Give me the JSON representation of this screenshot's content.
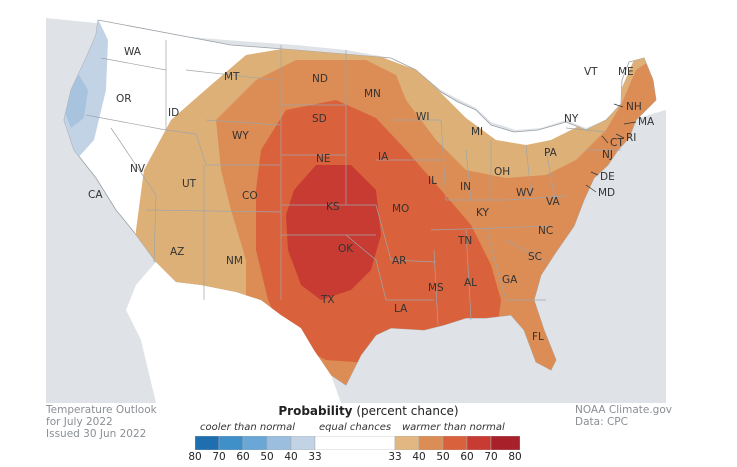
{
  "map": {
    "states": [
      {
        "id": "WA",
        "label": "WA"
      },
      {
        "id": "OR",
        "label": "OR"
      },
      {
        "id": "CA",
        "label": "CA"
      },
      {
        "id": "ID",
        "label": "ID"
      },
      {
        "id": "NV",
        "label": "NV"
      },
      {
        "id": "MT",
        "label": "MT"
      },
      {
        "id": "WY",
        "label": "WY"
      },
      {
        "id": "UT",
        "label": "UT"
      },
      {
        "id": "AZ",
        "label": "AZ"
      },
      {
        "id": "CO",
        "label": "CO"
      },
      {
        "id": "NM",
        "label": "NM"
      },
      {
        "id": "ND",
        "label": "ND"
      },
      {
        "id": "SD",
        "label": "SD"
      },
      {
        "id": "NE",
        "label": "NE"
      },
      {
        "id": "KS",
        "label": "KS"
      },
      {
        "id": "OK",
        "label": "OK"
      },
      {
        "id": "TX",
        "label": "TX"
      },
      {
        "id": "MN",
        "label": "MN"
      },
      {
        "id": "IA",
        "label": "IA"
      },
      {
        "id": "MO",
        "label": "MO"
      },
      {
        "id": "AR",
        "label": "AR"
      },
      {
        "id": "LA",
        "label": "LA"
      },
      {
        "id": "WI",
        "label": "WI"
      },
      {
        "id": "IL",
        "label": "IL"
      },
      {
        "id": "MI",
        "label": "MI"
      },
      {
        "id": "IN",
        "label": "IN"
      },
      {
        "id": "OH",
        "label": "OH"
      },
      {
        "id": "KY",
        "label": "KY"
      },
      {
        "id": "TN",
        "label": "TN"
      },
      {
        "id": "MS",
        "label": "MS"
      },
      {
        "id": "AL",
        "label": "AL"
      },
      {
        "id": "GA",
        "label": "GA"
      },
      {
        "id": "FL",
        "label": "FL"
      },
      {
        "id": "SC",
        "label": "SC"
      },
      {
        "id": "NC",
        "label": "NC"
      },
      {
        "id": "VA",
        "label": "VA"
      },
      {
        "id": "WV",
        "label": "WV"
      },
      {
        "id": "PA",
        "label": "PA"
      },
      {
        "id": "NY",
        "label": "NY"
      },
      {
        "id": "VT",
        "label": "VT"
      },
      {
        "id": "NH",
        "label": "NH"
      },
      {
        "id": "ME",
        "label": "ME"
      },
      {
        "id": "MA",
        "label": "MA"
      },
      {
        "id": "CT",
        "label": "CT"
      },
      {
        "id": "RI",
        "label": "RI"
      },
      {
        "id": "NJ",
        "label": "NJ"
      },
      {
        "id": "DE",
        "label": "DE"
      },
      {
        "id": "MD",
        "label": "MD"
      }
    ],
    "colors": {
      "water": "#dfe3e7",
      "land": "#ffffff",
      "border": "#9aa0a6",
      "cooler_33_40": "#c3d3e6",
      "cooler_40_50": "#a7c3de",
      "warmer_33_40": "#ddb077",
      "warmer_40_50": "#dc8c55",
      "warmer_50_60": "#d9623d",
      "warmer_60_70": "#c83b32"
    }
  },
  "credit_left": {
    "line1": "Temperature Outlook",
    "line2": "for July 2022",
    "line3": "Issued 30 Jun 2022"
  },
  "credit_right": {
    "line1": "NOAA Climate.gov",
    "line2": "Data: CPC"
  },
  "legend": {
    "title_bold": "Probability",
    "title_rest": " (percent chance)",
    "cooler_label": "cooler than normal",
    "equal_label": "equal chances",
    "warmer_label": "warmer than normal",
    "ticks": [
      "80",
      "70",
      "60",
      "50",
      "40",
      "33",
      "33",
      "40",
      "50",
      "60",
      "70",
      "80"
    ],
    "swatches": [
      "#1f6fb0",
      "#3f8fc9",
      "#6ba7d6",
      "#9bbedf",
      "#c3d3e6",
      "#ffffff",
      "#e2b782",
      "#dc8c55",
      "#d9623d",
      "#c83b32",
      "#a8202a"
    ]
  }
}
